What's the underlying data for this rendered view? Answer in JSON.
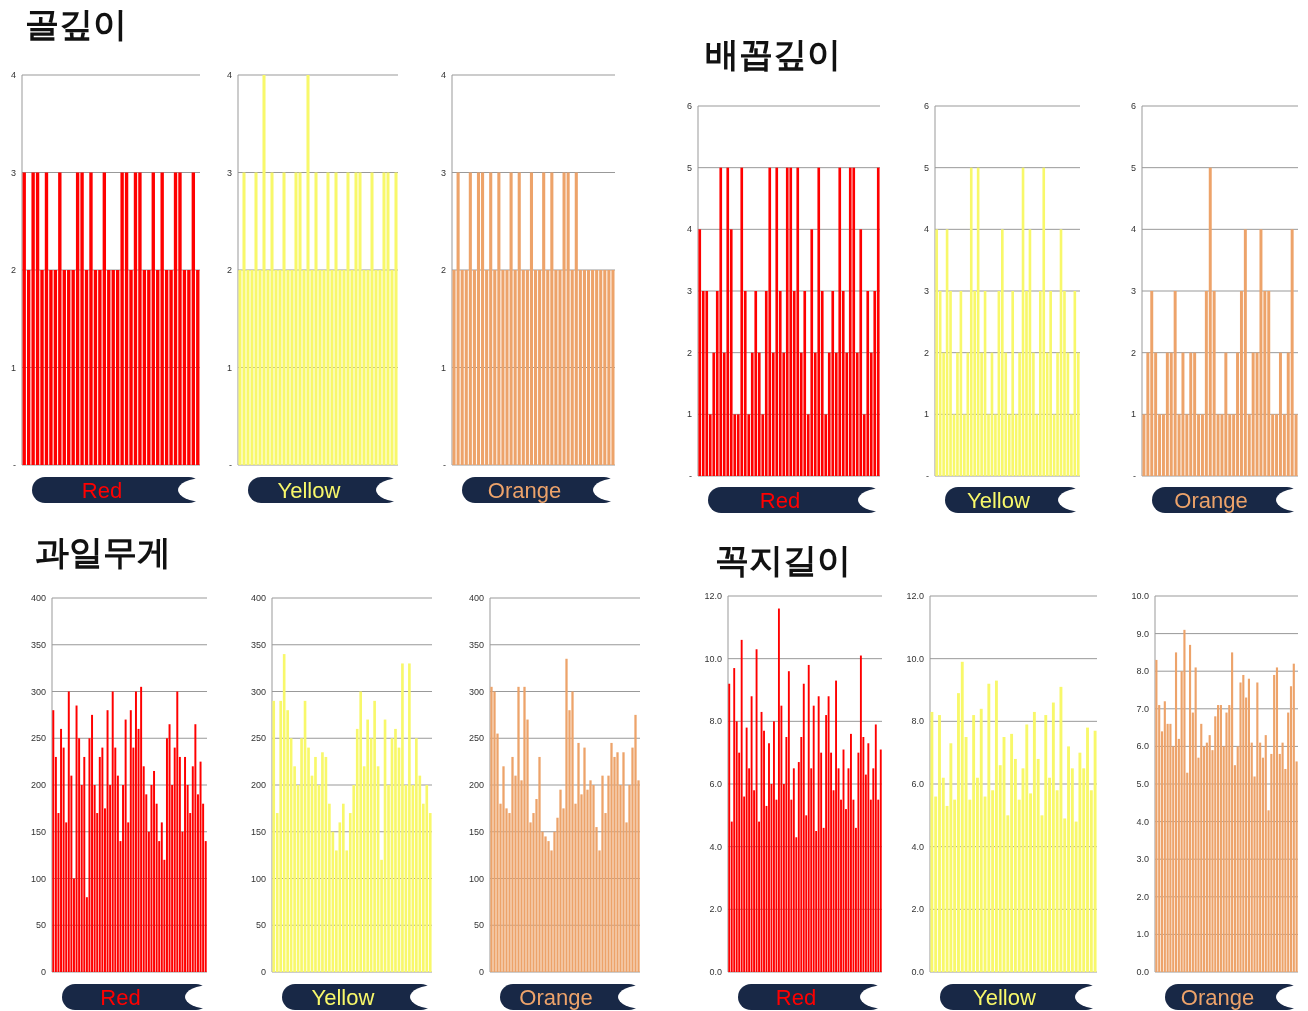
{
  "chart_data": [
    {
      "type": "bar",
      "title": "골깊이",
      "xlabel": "Red",
      "color": "#ff0000",
      "grid": "y",
      "ylim": [
        0,
        4
      ],
      "yticks": [
        {
          "value": 0,
          "label": "-"
        },
        1,
        2,
        3,
        4
      ],
      "values": [
        3,
        2,
        3,
        3,
        2,
        3,
        2,
        2,
        3,
        2,
        2,
        2,
        3,
        3,
        2,
        3,
        2,
        2,
        3,
        2,
        2,
        2,
        3,
        3,
        2,
        3,
        3,
        2,
        2,
        3,
        2,
        3,
        2,
        2,
        3,
        3,
        2,
        2,
        3,
        2
      ]
    },
    {
      "type": "bar",
      "xlabel": "Yellow",
      "color": "#f8f86a",
      "grid": "y",
      "ylim": [
        0,
        4
      ],
      "yticks": [
        {
          "value": 0,
          "label": "-"
        },
        1,
        2,
        3,
        4
      ],
      "values": [
        2,
        3,
        2,
        2,
        3,
        2,
        4,
        2,
        3,
        2,
        2,
        3,
        2,
        2,
        3,
        3,
        2,
        4,
        2,
        3,
        2,
        2,
        3,
        2,
        3,
        2,
        2,
        3,
        2,
        3,
        3,
        2,
        2,
        3,
        2,
        2,
        3,
        3,
        2,
        3
      ]
    },
    {
      "type": "bar",
      "xlabel": "Orange",
      "color": "#eda36a",
      "grid": "y",
      "ylim": [
        0,
        4
      ],
      "yticks": [
        {
          "value": 0,
          "label": "-"
        },
        1,
        2,
        3,
        4
      ],
      "values": [
        2,
        3,
        2,
        2,
        3,
        2,
        3,
        3,
        2,
        3,
        2,
        3,
        2,
        2,
        3,
        2,
        3,
        2,
        2,
        3,
        2,
        2,
        3,
        2,
        3,
        2,
        2,
        3,
        3,
        2,
        3,
        2,
        2,
        2,
        2,
        2,
        2,
        2,
        2,
        2
      ]
    },
    {
      "type": "bar",
      "title": "배꼽깊이",
      "xlabel": "Red",
      "color": "#ff0000",
      "grid": "y",
      "ylim": [
        0,
        6
      ],
      "yticks": [
        {
          "value": 0,
          "label": "-"
        },
        1,
        2,
        3,
        4,
        5,
        6
      ],
      "values": [
        4,
        3,
        3,
        1,
        2,
        3,
        5,
        2,
        5,
        4,
        1,
        1,
        5,
        3,
        1,
        2,
        3,
        2,
        1,
        3,
        5,
        2,
        5,
        3,
        2,
        5,
        5,
        3,
        5,
        2,
        3,
        1,
        4,
        2,
        5,
        3,
        1,
        2,
        3,
        2,
        5,
        3,
        2,
        5,
        5,
        2,
        4,
        1,
        3,
        2,
        3,
        5
      ]
    },
    {
      "type": "bar",
      "xlabel": "Yellow",
      "color": "#f8f86a",
      "grid": "y",
      "ylim": [
        0,
        6
      ],
      "yticks": [
        {
          "value": 0,
          "label": "-"
        },
        1,
        2,
        3,
        4,
        5,
        6
      ],
      "values": [
        4,
        3,
        2,
        4,
        3,
        1,
        2,
        3,
        1,
        2,
        5,
        3,
        5,
        2,
        3,
        1,
        2,
        1,
        3,
        4,
        2,
        1,
        3,
        1,
        2,
        5,
        3,
        4,
        2,
        1,
        3,
        5,
        2,
        3,
        1,
        2,
        4,
        3,
        2,
        1,
        3,
        2
      ]
    },
    {
      "type": "bar",
      "xlabel": "Orange",
      "color": "#eda36a",
      "grid": "y",
      "ylim": [
        0,
        6
      ],
      "yticks": [
        {
          "value": 0,
          "label": "-"
        },
        1,
        2,
        3,
        4,
        5,
        6
      ],
      "values": [
        1,
        2,
        3,
        2,
        1,
        1,
        2,
        2,
        3,
        1,
        2,
        1,
        2,
        2,
        1,
        1,
        3,
        5,
        3,
        1,
        1,
        2,
        1,
        1,
        2,
        3,
        4,
        1,
        2,
        2,
        4,
        3,
        3,
        1,
        1,
        2,
        1,
        2,
        4,
        1
      ]
    },
    {
      "type": "bar",
      "title": "과일무게",
      "xlabel": "Red",
      "color": "#ff0000",
      "grid": "y",
      "ylim": [
        0,
        400
      ],
      "yticks": [
        0,
        50,
        100,
        150,
        200,
        250,
        300,
        350,
        400
      ],
      "values": [
        280,
        230,
        170,
        260,
        240,
        160,
        300,
        210,
        100,
        285,
        250,
        200,
        230,
        80,
        250,
        275,
        200,
        170,
        230,
        240,
        175,
        280,
        200,
        300,
        240,
        210,
        140,
        200,
        270,
        160,
        280,
        240,
        300,
        260,
        305,
        220,
        190,
        150,
        200,
        215,
        180,
        140,
        160,
        120,
        250,
        265,
        200,
        240,
        300,
        230,
        150,
        230,
        200,
        170,
        220,
        265,
        190,
        225,
        180,
        140
      ]
    },
    {
      "type": "bar",
      "xlabel": "Yellow",
      "color": "#f8f86a",
      "grid": "y",
      "ylim": [
        0,
        400
      ],
      "yticks": [
        0,
        50,
        100,
        150,
        200,
        250,
        300,
        350,
        400
      ],
      "values": [
        290,
        170,
        290,
        340,
        280,
        250,
        220,
        200,
        250,
        290,
        240,
        210,
        230,
        200,
        235,
        230,
        180,
        150,
        130,
        160,
        180,
        130,
        170,
        200,
        260,
        300,
        220,
        270,
        250,
        290,
        220,
        120,
        270,
        200,
        250,
        260,
        240,
        330,
        200,
        330,
        200,
        250,
        210,
        180,
        200,
        170
      ]
    },
    {
      "type": "bar",
      "xlabel": "Orange",
      "color": "#eda36a",
      "grid": "y",
      "ylim": [
        0,
        400
      ],
      "yticks": [
        0,
        50,
        100,
        150,
        200,
        250,
        300,
        350,
        400
      ],
      "values": [
        305,
        300,
        255,
        180,
        220,
        175,
        170,
        230,
        210,
        305,
        205,
        305,
        270,
        160,
        170,
        185,
        230,
        150,
        145,
        140,
        130,
        150,
        165,
        195,
        175,
        335,
        280,
        300,
        180,
        245,
        190,
        240,
        195,
        205,
        200,
        155,
        130,
        210,
        170,
        210,
        245,
        230,
        235,
        200,
        235,
        160,
        200,
        240,
        275,
        205
      ]
    },
    {
      "type": "bar",
      "title": "꼭지길이",
      "xlabel": "Red",
      "color": "#ff0000",
      "grid": "y",
      "ylim": [
        0,
        12
      ],
      "yticks": [
        {
          "value": 0,
          "label": "0.0"
        },
        {
          "value": 2,
          "label": "2.0"
        },
        {
          "value": 4,
          "label": "4.0"
        },
        {
          "value": 6,
          "label": "6.0"
        },
        {
          "value": 8,
          "label": "8.0"
        },
        {
          "value": 10,
          "label": "10.0"
        },
        {
          "value": 12,
          "label": "12.0"
        }
      ],
      "values": [
        9.2,
        4.8,
        9.7,
        8.0,
        7.0,
        10.6,
        5.6,
        7.8,
        6.5,
        8.8,
        5.8,
        10.3,
        4.8,
        8.3,
        7.7,
        5.3,
        7.3,
        6.0,
        8.0,
        5.5,
        11.6,
        8.5,
        6.0,
        7.5,
        9.6,
        5.5,
        6.5,
        4.3,
        6.7,
        7.5,
        9.2,
        5.0,
        9.8,
        6.5,
        8.5,
        4.5,
        8.8,
        7.0,
        4.6,
        8.2,
        8.8,
        7.0,
        5.8,
        9.3,
        6.5,
        5.5,
        7.1,
        5.2,
        6.5,
        7.6,
        5.5,
        4.6,
        7.0,
        10.1,
        7.5,
        6.3,
        7.3,
        5.5,
        6.5,
        7.9,
        5.5,
        7.1
      ]
    },
    {
      "type": "bar",
      "xlabel": "Yellow",
      "color": "#f8f86a",
      "grid": "y",
      "ylim": [
        0,
        12
      ],
      "yticks": [
        {
          "value": 0,
          "label": "0.0"
        },
        {
          "value": 2,
          "label": "2.0"
        },
        {
          "value": 4,
          "label": "4.0"
        },
        {
          "value": 6,
          "label": "6.0"
        },
        {
          "value": 8,
          "label": "8.0"
        },
        {
          "value": 10,
          "label": "10.0"
        },
        {
          "value": 12,
          "label": "12.0"
        }
      ],
      "values": [
        8.3,
        5.6,
        8.2,
        6.2,
        5.3,
        7.3,
        5.5,
        8.9,
        9.9,
        7.5,
        5.5,
        8.2,
        6.2,
        8.4,
        5.6,
        9.2,
        5.8,
        9.3,
        6.6,
        7.5,
        5.0,
        7.6,
        6.8,
        5.5,
        6.5,
        7.9,
        5.7,
        8.3,
        6.8,
        5.0,
        8.2,
        6.2,
        8.6,
        5.8,
        9.1,
        4.9,
        7.2,
        6.5,
        4.8,
        7.0,
        6.5,
        7.8,
        5.8,
        7.7
      ]
    },
    {
      "type": "bar",
      "xlabel": "Orange",
      "color": "#eda36a",
      "grid": "y",
      "ylim": [
        0,
        10
      ],
      "yticks": [
        {
          "value": 0,
          "label": "0.0"
        },
        {
          "value": 1,
          "label": "1.0"
        },
        {
          "value": 2,
          "label": "2.0"
        },
        {
          "value": 3,
          "label": "3.0"
        },
        {
          "value": 4,
          "label": "4.0"
        },
        {
          "value": 5,
          "label": "5.0"
        },
        {
          "value": 6,
          "label": "6.0"
        },
        {
          "value": 7,
          "label": "7.0"
        },
        {
          "value": 8,
          "label": "8.0"
        },
        {
          "value": 9,
          "label": "9.0"
        },
        {
          "value": 10,
          "label": "10.0"
        }
      ],
      "values": [
        8.3,
        7.1,
        6.4,
        7.2,
        6.6,
        6.6,
        6.0,
        8.5,
        6.2,
        8.0,
        9.1,
        5.3,
        8.7,
        6.9,
        8.1,
        5.7,
        6.6,
        6.0,
        6.1,
        6.3,
        5.9,
        6.8,
        7.1,
        7.1,
        6.0,
        6.9,
        7.1,
        8.5,
        5.5,
        6.0,
        7.7,
        7.9,
        7.3,
        7.8,
        6.1,
        5.2,
        7.7,
        6.1,
        5.7,
        6.3,
        4.3,
        5.8,
        7.9,
        8.1,
        5.8,
        6.1,
        5.4,
        6.9,
        7.6,
        8.2,
        5.6
      ]
    }
  ]
}
